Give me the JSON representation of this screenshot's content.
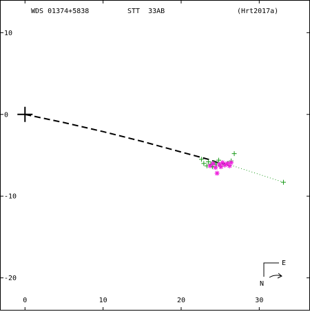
{
  "header": {
    "wds": "WDS 01374+5838",
    "discoverer": "STT  33AB",
    "reference": "(Hrt2017a)"
  },
  "compass": {
    "east_label": "E",
    "north_label": "N"
  },
  "colors": {
    "frame": "#000000",
    "orbit": "#000000",
    "measure_plus": "#1a9a1a",
    "measure_star": "#ee22dd",
    "residual_dotted": "#1a9a1a"
  },
  "chart_data": {
    "type": "scatter",
    "title": "",
    "xlabel": "",
    "ylabel": "",
    "xlim": [
      -3.2,
      36.5
    ],
    "ylim": [
      -24,
      14
    ],
    "x_ticks": [
      0,
      10,
      20,
      30
    ],
    "y_ticks": [
      10,
      0,
      -10,
      -20
    ],
    "x_tick_labels": [
      "0",
      "10",
      "20",
      "30"
    ],
    "y_tick_labels": [
      "10",
      "0",
      "-10",
      "-20"
    ],
    "primary_star": [
      0,
      0
    ],
    "orbit_path": {
      "style": "dashed",
      "points": [
        [
          0,
          0
        ],
        [
          5,
          -1.0
        ],
        [
          10,
          -2.1
        ],
        [
          15,
          -3.3
        ],
        [
          20,
          -4.6
        ],
        [
          23.5,
          -5.5
        ],
        [
          25,
          -6.0
        ],
        [
          26,
          -6.1
        ]
      ]
    },
    "series": [
      {
        "marker": "plus",
        "color": "#1a9a1a",
        "points": [
          [
            22.6,
            -5.5
          ],
          [
            22.9,
            -6.0
          ],
          [
            23.3,
            -6.3
          ],
          [
            23.5,
            -5.8
          ],
          [
            23.8,
            -6.1
          ],
          [
            24.0,
            -6.4
          ],
          [
            24.2,
            -5.9
          ],
          [
            24.5,
            -6.1
          ],
          [
            24.8,
            -5.6
          ],
          [
            25.0,
            -6.3
          ],
          [
            25.3,
            -5.9
          ],
          [
            25.6,
            -6.2
          ],
          [
            26.0,
            -6.0
          ],
          [
            26.4,
            -5.7
          ],
          [
            26.8,
            -4.8
          ],
          [
            33.1,
            -8.3
          ]
        ]
      },
      {
        "marker": "star",
        "color": "#ee22dd",
        "points": [
          [
            23.7,
            -6.3
          ],
          [
            24.1,
            -6.0
          ],
          [
            24.4,
            -6.5
          ],
          [
            24.6,
            -7.2
          ],
          [
            24.9,
            -6.1
          ],
          [
            25.1,
            -6.4
          ],
          [
            25.3,
            -5.9
          ],
          [
            25.6,
            -6.2
          ],
          [
            25.9,
            -6.0
          ],
          [
            26.2,
            -6.3
          ],
          [
            26.4,
            -5.9
          ]
        ]
      }
    ],
    "residual_line": {
      "style": "dotted",
      "points": [
        [
          26.0,
          -6.1
        ],
        [
          33.1,
          -8.3
        ]
      ]
    },
    "grid": false,
    "legend": "none"
  }
}
